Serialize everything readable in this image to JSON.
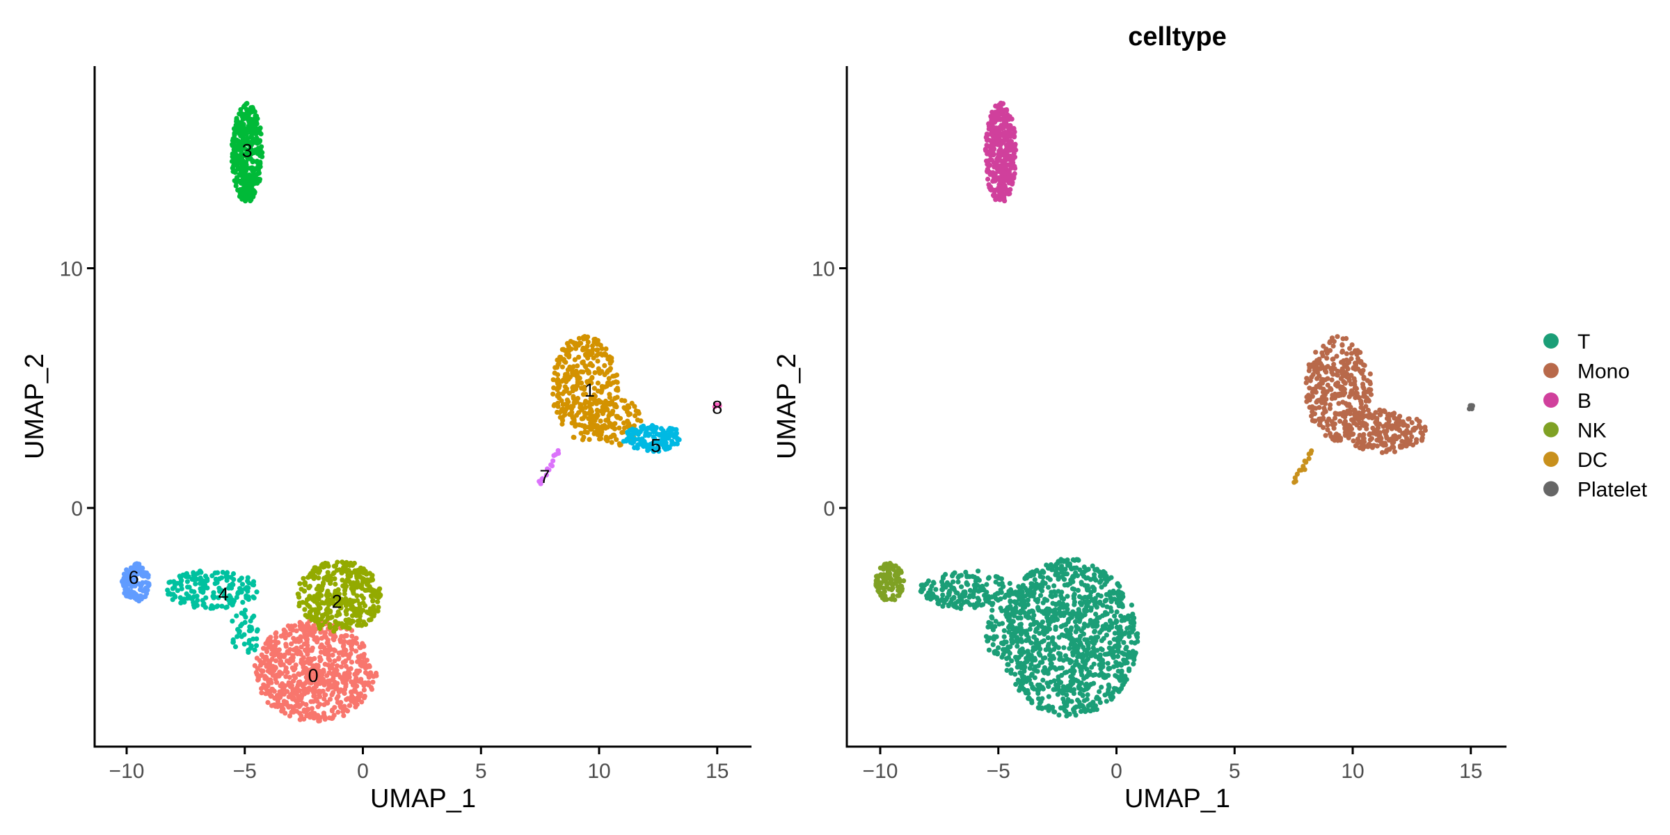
{
  "chart_data": [
    {
      "type": "scatter",
      "title": "",
      "xlabel": "UMAP_1",
      "ylabel": "UMAP_2",
      "xlim": [
        -11,
        16
      ],
      "ylim": [
        -10,
        18.5
      ],
      "xticks": [
        -10,
        -5,
        0,
        5,
        10,
        15
      ],
      "xtick_labels": [
        "-10",
        "-5",
        "0",
        "5",
        "10",
        "15"
      ],
      "yticks": [
        0,
        10
      ],
      "ytick_labels": [
        "0",
        "10"
      ],
      "grid": false,
      "series": [
        {
          "name": "0",
          "color": "#F8766D",
          "label_pos": [
            -2.1,
            -7.0
          ],
          "clusters": [
            {
              "shape": "ellipse",
              "cx": -2.0,
              "cy": -6.8,
              "rx": 2.6,
              "ry": 2.1,
              "n": 700
            }
          ]
        },
        {
          "name": "1",
          "color": "#D39200",
          "label_pos": [
            9.6,
            4.9
          ],
          "clusters": [
            {
              "shape": "ellipse",
              "cx": 9.4,
              "cy": 5.0,
              "rx": 1.4,
              "ry": 2.2,
              "n": 340
            },
            {
              "shape": "ellipse",
              "cx": 10.7,
              "cy": 3.6,
              "rx": 1.1,
              "ry": 1.0,
              "n": 90
            }
          ]
        },
        {
          "name": "2",
          "color": "#93AA00",
          "label_pos": [
            -1.1,
            -3.9
          ],
          "clusters": [
            {
              "shape": "ellipse",
              "cx": -1.0,
              "cy": -3.7,
              "rx": 1.8,
              "ry": 1.5,
              "n": 380
            }
          ]
        },
        {
          "name": "3",
          "color": "#00BA38",
          "label_pos": [
            -4.9,
            14.9
          ],
          "clusters": [
            {
              "shape": "ellipse",
              "cx": -4.9,
              "cy": 14.8,
              "rx": 0.65,
              "ry": 2.1,
              "n": 380
            }
          ]
        },
        {
          "name": "4",
          "color": "#00C19F",
          "label_pos": [
            -5.9,
            -3.6
          ],
          "clusters": [
            {
              "shape": "ellipse",
              "cx": -6.4,
              "cy": -3.4,
              "rx": 2.0,
              "ry": 0.8,
              "n": 170
            },
            {
              "shape": "ellipse",
              "cx": -5.0,
              "cy": -5.2,
              "rx": 0.6,
              "ry": 1.1,
              "n": 40
            }
          ]
        },
        {
          "name": "5",
          "color": "#00B9E3",
          "label_pos": [
            12.4,
            2.6
          ],
          "clusters": [
            {
              "shape": "ellipse",
              "cx": 12.3,
              "cy": 2.9,
              "rx": 1.3,
              "ry": 0.55,
              "n": 130
            }
          ]
        },
        {
          "name": "6",
          "color": "#619CFF",
          "label_pos": [
            -9.7,
            -2.9
          ],
          "clusters": [
            {
              "shape": "ellipse",
              "cx": -9.6,
              "cy": -3.1,
              "rx": 0.6,
              "ry": 0.8,
              "n": 110
            }
          ]
        },
        {
          "name": "7",
          "color": "#DB72FB",
          "label_pos": [
            7.7,
            1.3
          ],
          "clusters": [
            {
              "shape": "line",
              "x1": 7.5,
              "y1": 1.0,
              "x2": 8.3,
              "y2": 2.4,
              "n": 14
            }
          ]
        },
        {
          "name": "8",
          "color": "#FF61C3",
          "label_pos": [
            15.0,
            4.2
          ],
          "clusters": [
            {
              "shape": "ellipse",
              "cx": 15.0,
              "cy": 4.2,
              "rx": 0.12,
              "ry": 0.12,
              "n": 6
            }
          ]
        }
      ]
    },
    {
      "type": "scatter",
      "title": "celltype",
      "xlabel": "UMAP_1",
      "ylabel": "UMAP_2",
      "xlim": [
        -11,
        16
      ],
      "ylim": [
        -10,
        18.5
      ],
      "xticks": [
        -10,
        -5,
        0,
        5,
        10,
        15
      ],
      "xtick_labels": [
        "-10",
        "-5",
        "0",
        "5",
        "10",
        "15"
      ],
      "yticks": [
        0,
        10
      ],
      "ytick_labels": [
        "0",
        "10"
      ],
      "grid": false,
      "legend_position": "right",
      "legend": [
        {
          "name": "T",
          "color": "#1B9E77"
        },
        {
          "name": "Mono",
          "color": "#B8694A"
        },
        {
          "name": "B",
          "color": "#D0409C"
        },
        {
          "name": "NK",
          "color": "#7FA124"
        },
        {
          "name": "DC",
          "color": "#C8901C"
        },
        {
          "name": "Platelet",
          "color": "#666666"
        }
      ],
      "series": [
        {
          "name": "T",
          "color": "#1B9E77",
          "clusters": [
            {
              "shape": "ellipse",
              "cx": -2.0,
              "cy": -5.4,
              "rx": 2.9,
              "ry": 3.3,
              "n": 1080
            },
            {
              "shape": "ellipse",
              "cx": -6.4,
              "cy": -3.4,
              "rx": 2.0,
              "ry": 0.8,
              "n": 170
            },
            {
              "shape": "ellipse",
              "cx": -5.0,
              "cy": -5.2,
              "rx": 0.6,
              "ry": 1.1,
              "n": 40
            }
          ]
        },
        {
          "name": "Mono",
          "color": "#B8694A",
          "clusters": [
            {
              "shape": "ellipse",
              "cx": 9.4,
              "cy": 5.0,
              "rx": 1.4,
              "ry": 2.2,
              "n": 340
            },
            {
              "shape": "ellipse",
              "cx": 11.3,
              "cy": 3.2,
              "rx": 1.8,
              "ry": 0.9,
              "n": 200
            }
          ]
        },
        {
          "name": "B",
          "color": "#D0409C",
          "clusters": [
            {
              "shape": "ellipse",
              "cx": -4.9,
              "cy": 14.8,
              "rx": 0.65,
              "ry": 2.1,
              "n": 380
            }
          ]
        },
        {
          "name": "NK",
          "color": "#7FA124",
          "clusters": [
            {
              "shape": "ellipse",
              "cx": -9.6,
              "cy": -3.1,
              "rx": 0.6,
              "ry": 0.8,
              "n": 110
            }
          ]
        },
        {
          "name": "DC",
          "color": "#C8901C",
          "clusters": [
            {
              "shape": "line",
              "x1": 7.5,
              "y1": 1.0,
              "x2": 8.3,
              "y2": 2.4,
              "n": 14
            }
          ]
        },
        {
          "name": "Platelet",
          "color": "#666666",
          "clusters": [
            {
              "shape": "ellipse",
              "cx": 15.0,
              "cy": 4.2,
              "rx": 0.12,
              "ry": 0.12,
              "n": 6
            }
          ]
        }
      ]
    }
  ]
}
